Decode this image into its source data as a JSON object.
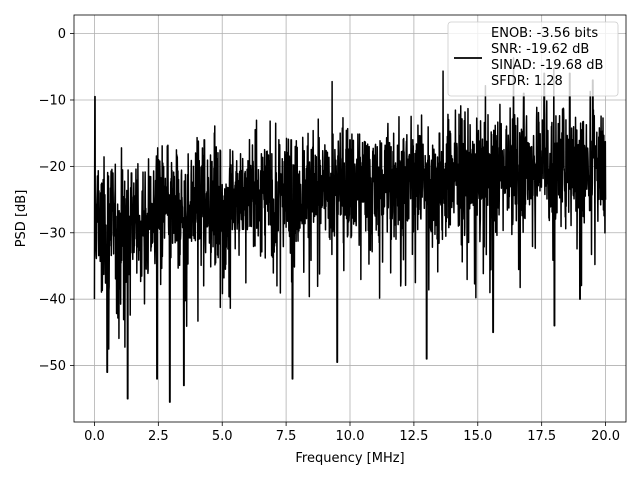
{
  "chart_data": {
    "type": "line",
    "title": "",
    "xlabel": "Frequency [MHz]",
    "ylabel": "PSD [dB]",
    "xlim": [
      -0.8,
      20.8
    ],
    "ylim": [
      -58.5,
      2.8
    ],
    "xticks": [
      0.0,
      2.5,
      5.0,
      7.5,
      10.0,
      12.5,
      15.0,
      17.5,
      20.0
    ],
    "xtick_labels": [
      "0.0",
      "2.5",
      "5.0",
      "7.5",
      "10.0",
      "12.5",
      "15.0",
      "17.5",
      "20.0"
    ],
    "yticks": [
      0,
      -10,
      -20,
      -30,
      -40,
      -50
    ],
    "ytick_labels": [
      "0",
      "−10",
      "−20",
      "−30",
      "−40",
      "−50"
    ],
    "grid": true,
    "legend_position": "top-right",
    "series_color": "#000000",
    "series": [
      {
        "name": "",
        "description": "dense noisy spectrum from 0 to 20 MHz; mean level rises from about -30 dB at 0 MHz to about -20 dB near 19 MHz, with deep dips to -55 dB and peaks near -9.5 dB at DC and -6 dB around 16.8-19.5 MHz",
        "x": [
          0.0,
          0.02,
          0.05,
          0.1,
          0.2,
          0.3,
          0.5,
          0.7,
          1.0,
          1.3,
          1.6,
          2.0,
          2.5,
          3.0,
          3.5,
          4.0,
          4.5,
          5.0,
          5.5,
          6.0,
          6.5,
          7.0,
          7.5,
          8.0,
          8.5,
          9.0,
          9.5,
          10.0,
          10.5,
          11.0,
          11.5,
          12.0,
          12.5,
          13.0,
          13.5,
          14.0,
          14.5,
          15.0,
          15.5,
          16.0,
          16.5,
          17.0,
          17.5,
          18.0,
          18.5,
          19.0,
          19.5,
          20.0
        ],
        "y": [
          -40,
          -9.5,
          -30,
          -26,
          -28,
          -30,
          -29,
          -28,
          -29,
          -28,
          -27,
          -29,
          -27,
          -27,
          -26,
          -26,
          -25,
          -26,
          -25,
          -24,
          -24,
          -25,
          -24,
          -24,
          -23,
          -24,
          -23,
          -23,
          -22,
          -23,
          -22,
          -22,
          -21,
          -22,
          -22,
          -21,
          -21,
          -21,
          -21,
          -20,
          -20,
          -20,
          -19,
          -20,
          -19,
          -20,
          -20,
          -21
        ],
        "peaks": [
          [
            0.02,
            -9.5
          ],
          [
            0.35,
            -22
          ],
          [
            1.45,
            -21
          ],
          [
            2.5,
            -19
          ],
          [
            4.3,
            -16
          ],
          [
            7.7,
            -16
          ],
          [
            10.0,
            -16
          ],
          [
            13.5,
            -15
          ],
          [
            16.8,
            -9
          ],
          [
            17.6,
            -6
          ],
          [
            18.6,
            -6
          ],
          [
            19.5,
            -7
          ]
        ],
        "dips": [
          [
            0.5,
            -51
          ],
          [
            1.3,
            -55
          ],
          [
            2.45,
            -52
          ],
          [
            2.95,
            -55.5
          ],
          [
            3.5,
            -53
          ],
          [
            7.75,
            -52
          ],
          [
            9.5,
            -49.5
          ],
          [
            13.0,
            -49
          ],
          [
            15.6,
            -45
          ],
          [
            18.0,
            -44
          ],
          [
            19.0,
            -40
          ]
        ]
      }
    ],
    "legend": {
      "lines": [
        "ENOB: -3.56 bits",
        "SNR: -19.62 dB",
        "SINAD: -19.68 dB",
        "SFDR: 1.28"
      ]
    }
  }
}
